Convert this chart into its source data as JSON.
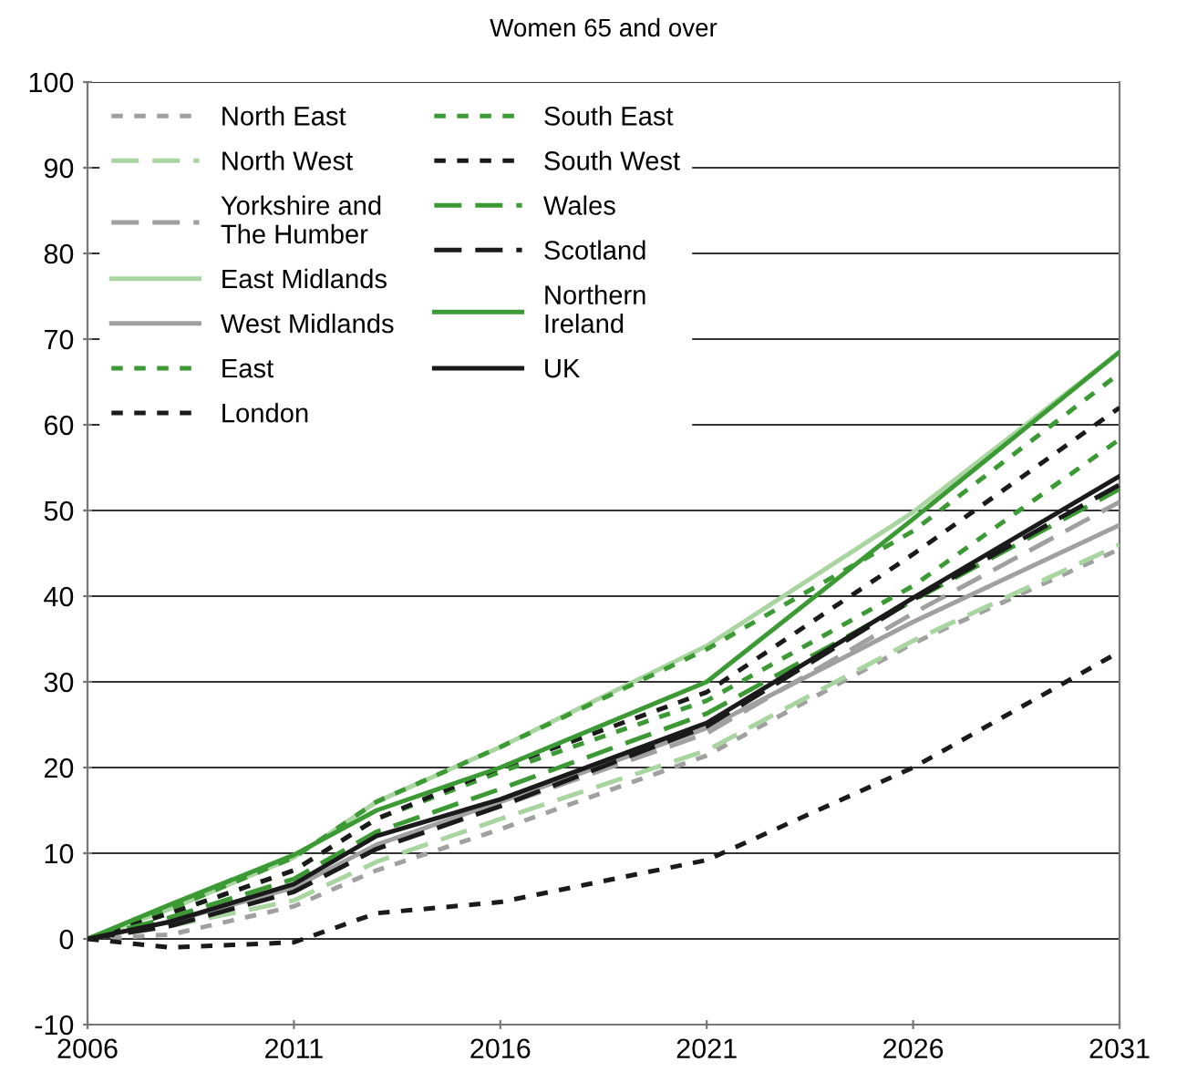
{
  "chart_data": {
    "type": "line",
    "title": "Women 65 and over",
    "x": [
      2006,
      2008,
      2011,
      2013,
      2016,
      2021,
      2026,
      2031
    ],
    "xlim": [
      2006,
      2031
    ],
    "xticks": [
      2006,
      2011,
      2016,
      2021,
      2026,
      2031
    ],
    "ylim": [
      -10,
      100
    ],
    "yticks": [
      -10,
      0,
      10,
      20,
      30,
      40,
      50,
      60,
      70,
      80,
      90,
      100
    ],
    "grid": "y",
    "legend": "top left",
    "marker": "none",
    "series": [
      {
        "name": "North East",
        "color": "#a0a0a0",
        "line_style": "dotted",
        "values": [
          0,
          0.5,
          3.8,
          8,
          12.8,
          21.4,
          34.5,
          45.5
        ]
      },
      {
        "name": "North West",
        "color": "#a8d5a0",
        "line_style": "dashed",
        "values": [
          0,
          1.5,
          4.5,
          9,
          14,
          22,
          34.8,
          46
        ]
      },
      {
        "name": "Yorkshire and\nThe Humber",
        "color": "#a0a0a0",
        "line_style": "dashed",
        "values": [
          0,
          1.8,
          5.5,
          10.5,
          15.5,
          24,
          38,
          51
        ]
      },
      {
        "name": "East Midlands",
        "color": "#a8d5a0",
        "line_style": "solid",
        "values": [
          0,
          3.5,
          9.5,
          16,
          22.4,
          34.2,
          49.8,
          68.5
        ]
      },
      {
        "name": "West Midlands",
        "color": "#a0a0a0",
        "line_style": "solid",
        "values": [
          0,
          2,
          6,
          11,
          16,
          24.6,
          37,
          48.3
        ]
      },
      {
        "name": "East",
        "color": "#3c9a34",
        "line_style": "dotted",
        "values": [
          0,
          3,
          8,
          14,
          19.5,
          27.8,
          41.2,
          58.3
        ]
      },
      {
        "name": "London",
        "color": "#1a1a1a",
        "line_style": "dotted",
        "values": [
          0,
          -1,
          -0.4,
          3,
          4.3,
          9.2,
          20,
          33.5
        ]
      },
      {
        "name": "South East",
        "color": "#3c9a34",
        "line_style": "dotted",
        "values": [
          0,
          3.5,
          9.5,
          16,
          22.4,
          33.8,
          47.6,
          66
        ]
      },
      {
        "name": "South West",
        "color": "#1a1a1a",
        "line_style": "dotted",
        "values": [
          0,
          3,
          8,
          14,
          20,
          28.8,
          44.9,
          62
        ]
      },
      {
        "name": "Wales",
        "color": "#3c9a34",
        "line_style": "dashed",
        "values": [
          0,
          2.5,
          7,
          12.5,
          17.5,
          26.3,
          39.5,
          52.5
        ]
      },
      {
        "name": "Scotland",
        "color": "#1a1a1a",
        "line_style": "dashed",
        "values": [
          0,
          1.5,
          5.5,
          10.5,
          15.5,
          24.8,
          39.6,
          53
        ]
      },
      {
        "name": "Northern\nIreland",
        "color": "#3c9a34",
        "line_style": "solid",
        "values": [
          0,
          4,
          9.8,
          15,
          20,
          30,
          49,
          68.5
        ]
      },
      {
        "name": "UK",
        "color": "#1a1a1a",
        "line_style": "solid",
        "values": [
          0,
          2,
          6.4,
          12,
          16.3,
          25.2,
          39.8,
          54
        ]
      }
    ]
  }
}
